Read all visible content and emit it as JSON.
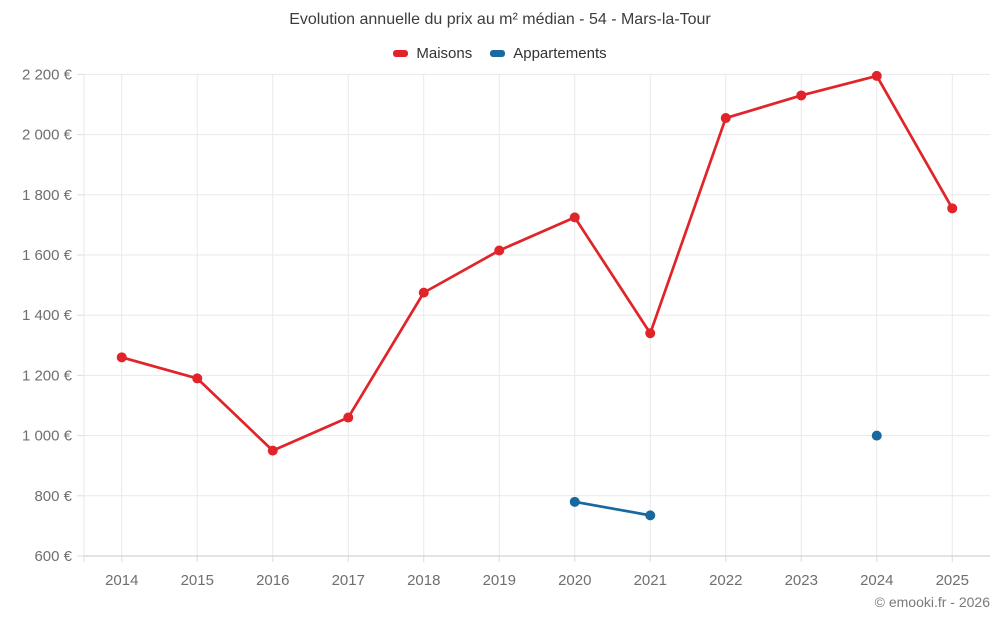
{
  "header": {
    "title": "Evolution annuelle du prix au m² médian - 54 - Mars-la-Tour"
  },
  "legend": {
    "items": [
      {
        "label": "Maisons",
        "color": "#e02429"
      },
      {
        "label": "Appartements",
        "color": "#17699e"
      }
    ]
  },
  "footer": {
    "credit": "© emooki.fr - 2026"
  },
  "chart_data": {
    "type": "line",
    "title": "Evolution annuelle du prix au m² médian - 54 - Mars-la-Tour",
    "categories": [
      "2014",
      "2015",
      "2016",
      "2017",
      "2018",
      "2019",
      "2020",
      "2021",
      "2022",
      "2023",
      "2024",
      "2025"
    ],
    "series": [
      {
        "name": "Maisons",
        "color": "#e02429",
        "values": [
          1260,
          1190,
          950,
          1060,
          1475,
          1615,
          1725,
          1340,
          2055,
          2130,
          2195,
          1755
        ]
      },
      {
        "name": "Appartements",
        "color": "#17699e",
        "values": [
          null,
          null,
          null,
          null,
          null,
          null,
          780,
          735,
          null,
          null,
          1000,
          null
        ]
      }
    ],
    "xlabel": "",
    "ylabel": "",
    "ylim": [
      600,
      2200
    ],
    "y_tick_step": 200,
    "y_tick_labels": [
      "600 €",
      "800 €",
      "1 000 €",
      "1 200 €",
      "1 400 €",
      "1 600 €",
      "1 800 €",
      "2 000 €",
      "2 200 €"
    ],
    "grid": true,
    "legend_position": "top",
    "currency_suffix": "€"
  }
}
